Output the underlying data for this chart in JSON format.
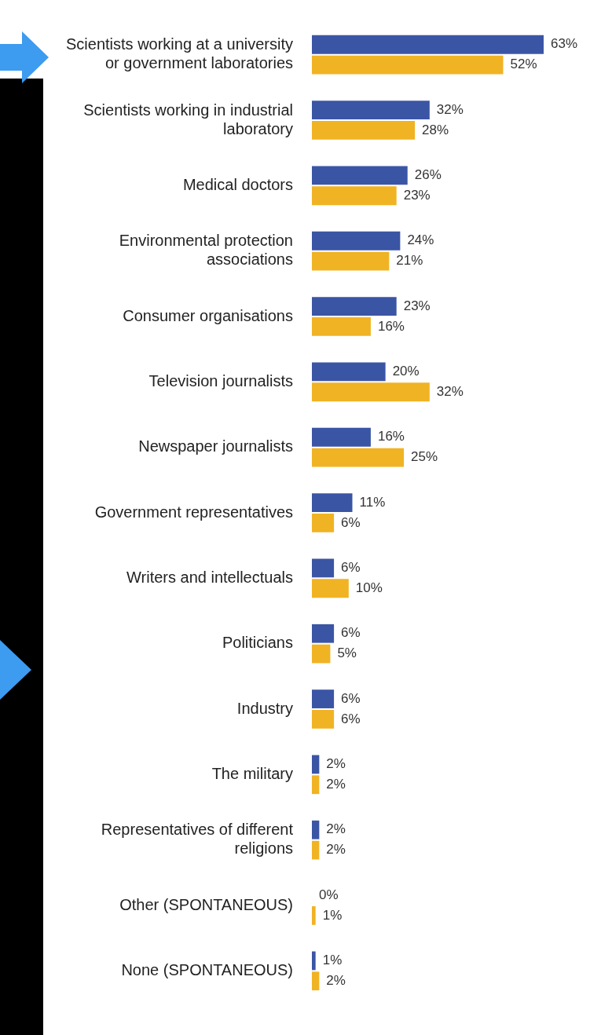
{
  "chart_data": {
    "type": "bar",
    "orientation": "horizontal",
    "categories": [
      "Scientists working at a university or government laboratories",
      "Scientists working in industrial laboratory",
      "Medical doctors",
      "Environmental protection associations",
      "Consumer organisations",
      "Television journalists",
      "Newspaper journalists",
      "Government representatives",
      "Writers and intellectuals",
      "Politicians",
      "Industry",
      "The military",
      "Representatives of different religions",
      "Other (SPONTANEOUS)",
      "None (SPONTANEOUS)"
    ],
    "series": [
      {
        "color": "#3b55a5",
        "values": [
          63,
          32,
          26,
          24,
          23,
          20,
          16,
          11,
          6,
          6,
          6,
          2,
          2,
          0,
          1
        ],
        "value_labels": [
          "63%",
          "32%",
          "26%",
          "24%",
          "23%",
          "20%",
          "16%",
          "11%",
          "6%",
          "6%",
          "6%",
          "2%",
          "2%",
          "0%",
          "1%"
        ]
      },
      {
        "color": "#f0b323",
        "values": [
          52,
          28,
          23,
          21,
          16,
          32,
          25,
          6,
          10,
          5,
          6,
          2,
          2,
          1,
          2
        ],
        "value_labels": [
          "52%",
          "28%",
          "23%",
          "21%",
          "16%",
          "32%",
          "25%",
          "6%",
          "10%",
          "5%",
          "6%",
          "2%",
          "2%",
          "1%",
          "2%"
        ]
      }
    ],
    "grid": false,
    "legend": false,
    "tick_labels": "y"
  }
}
